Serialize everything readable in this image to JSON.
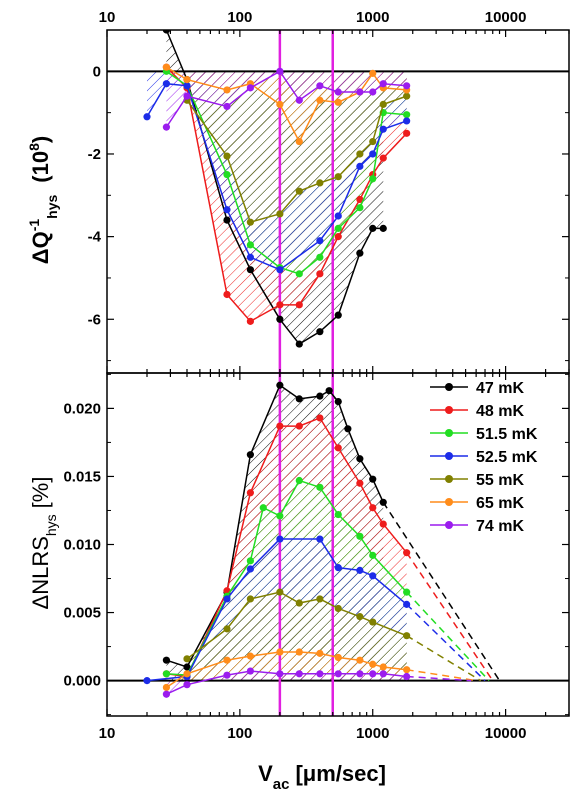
{
  "chart_data": [
    {
      "type": "line",
      "panel": "top",
      "ylabel": "ΔQ⁻¹_hys (10⁸)",
      "ylabel_main": "ΔQ",
      "ylabel_sup": "-1",
      "ylabel_sub": "hys",
      "ylabel_unit": "(10",
      "ylabel_unit_sup": "8",
      "ylabel_unit_end": ")",
      "x_scale": "log",
      "xlim": [
        10,
        30000
      ],
      "ylim": [
        -7.3,
        1.0
      ],
      "x_ticks": [
        10,
        100,
        1000,
        10000
      ],
      "x_tick_labels": [
        "10",
        "100",
        "1000",
        "10000"
      ],
      "y_ticks": [
        0,
        -2,
        -4,
        -6
      ],
      "y_tick_labels": [
        "0",
        "-2",
        "-4",
        "-6"
      ],
      "reference_line_y": 0,
      "vertical_markers_x": [
        200,
        500
      ],
      "series": [
        {
          "name": "47 mK",
          "color": "#000000",
          "x": [
            28,
            40,
            80,
            120,
            200,
            280,
            400,
            550,
            800,
            1000,
            1200
          ],
          "y": [
            1.0,
            -0.2,
            -3.6,
            -4.8,
            -6.0,
            -6.6,
            -6.3,
            -5.9,
            -4.4,
            -3.8,
            -3.8
          ]
        },
        {
          "name": "48 mK",
          "color": "#ee1c1c",
          "x": [
            28,
            40,
            80,
            120,
            200,
            280,
            400,
            550,
            800,
            1000,
            1200,
            1800
          ],
          "y": [
            0.1,
            -0.4,
            -5.4,
            -6.05,
            -5.65,
            -5.65,
            -4.9,
            -4.0,
            -3.1,
            -2.5,
            -2.1,
            -1.5
          ]
        },
        {
          "name": "51.5 mK",
          "color": "#22dd22",
          "x": [
            28,
            40,
            80,
            120,
            200,
            280,
            400,
            550,
            800,
            1000,
            1200,
            1800
          ],
          "y": [
            0.0,
            -0.35,
            -2.5,
            -4.2,
            -4.75,
            -4.9,
            -4.5,
            -3.8,
            -3.3,
            -2.6,
            -1.0,
            -1.05
          ]
        },
        {
          "name": "52.5 mK",
          "color": "#1c2ce8",
          "x": [
            20,
            28,
            40,
            80,
            120,
            200,
            400,
            550,
            800,
            1000,
            1200,
            1800
          ],
          "y": [
            -1.1,
            -0.3,
            -0.35,
            -3.35,
            -4.5,
            -4.8,
            -4.1,
            -3.5,
            -2.3,
            -2.0,
            -1.4,
            -1.2
          ]
        },
        {
          "name": "55 mK",
          "color": "#808000",
          "x": [
            40,
            80,
            120,
            200,
            280,
            400,
            550,
            800,
            1000,
            1200,
            1800
          ],
          "y": [
            -0.7,
            -2.05,
            -3.65,
            -3.45,
            -2.9,
            -2.7,
            -2.55,
            -2.0,
            -1.7,
            -0.8,
            -0.6
          ]
        },
        {
          "name": "65 mK",
          "color": "#ff8c1a",
          "x": [
            28,
            40,
            80,
            120,
            200,
            280,
            400,
            550,
            800,
            1000,
            1200,
            1800
          ],
          "y": [
            0.1,
            -0.2,
            -0.45,
            -0.3,
            -0.8,
            -1.7,
            -0.7,
            -0.75,
            -0.5,
            -0.05,
            -0.4,
            -0.45
          ]
        },
        {
          "name": "74 mK",
          "color": "#9b1cee",
          "x": [
            28,
            40,
            80,
            120,
            200,
            280,
            400,
            550,
            800,
            1000,
            1200,
            1800
          ],
          "y": [
            -1.35,
            -0.6,
            -0.85,
            -0.4,
            0.0,
            -0.7,
            -0.35,
            -0.5,
            -0.5,
            -0.5,
            -0.3,
            -0.35
          ]
        }
      ]
    },
    {
      "type": "line",
      "panel": "bottom",
      "xlabel": "V_ac [μm/sec]",
      "xlabel_main": "V",
      "xlabel_sub": "ac",
      "xlabel_unit": "[μm/sec]",
      "ylabel": "ΔNLRS_hys [%]",
      "ylabel_main": "ΔNLRS",
      "ylabel_sub": "hys",
      "ylabel_unit": "[%]",
      "x_scale": "log",
      "xlim": [
        10,
        30000
      ],
      "ylim": [
        -0.0026,
        0.0226
      ],
      "x_ticks": [
        10,
        100,
        1000,
        10000
      ],
      "x_tick_labels": [
        "10",
        "100",
        "1000",
        "10000"
      ],
      "y_ticks": [
        0.0,
        0.005,
        0.01,
        0.015,
        0.02
      ],
      "y_tick_labels": [
        "0.000",
        "0.005",
        "0.010",
        "0.015",
        "0.020"
      ],
      "reference_line_y": 0,
      "vertical_markers_x": [
        200,
        500
      ],
      "legend_position": "top-right",
      "series": [
        {
          "name": "47 mK",
          "color": "#000000",
          "x": [
            28,
            40,
            80,
            120,
            200,
            280,
            400,
            470,
            550,
            650,
            800,
            1000,
            1200
          ],
          "y": [
            0.0015,
            0.001,
            0.0065,
            0.0166,
            0.0217,
            0.0207,
            0.0209,
            0.0213,
            0.0205,
            0.0185,
            0.0163,
            0.0148,
            0.0131
          ],
          "extrap": [
            [
              1200,
              0.0131
            ],
            [
              9000,
              0.0
            ]
          ]
        },
        {
          "name": "48 mK",
          "color": "#ee1c1c",
          "x": [
            28,
            40,
            80,
            120,
            200,
            280,
            400,
            550,
            800,
            1000,
            1200,
            1800
          ],
          "y": [
            0.0005,
            0.0003,
            0.0066,
            0.0138,
            0.0187,
            0.0187,
            0.0193,
            0.0171,
            0.0145,
            0.0127,
            0.0115,
            0.0094
          ],
          "extrap": [
            [
              1800,
              0.0094
            ],
            [
              8000,
              0.0
            ]
          ]
        },
        {
          "name": "51.5 mK",
          "color": "#22dd22",
          "x": [
            28,
            40,
            80,
            120,
            150,
            200,
            280,
            400,
            550,
            800,
            1000,
            1800
          ],
          "y": [
            0.0005,
            0.0004,
            0.0062,
            0.0088,
            0.0127,
            0.0121,
            0.0147,
            0.0142,
            0.0122,
            0.0106,
            0.0092,
            0.0065
          ],
          "extrap": [
            [
              1800,
              0.0065
            ],
            [
              7500,
              0.0
            ]
          ]
        },
        {
          "name": "52.5 mK",
          "color": "#1c2ce8",
          "x": [
            20,
            40,
            80,
            120,
            200,
            400,
            550,
            800,
            1000,
            1800
          ],
          "y": [
            0.0,
            0.0003,
            0.006,
            0.0082,
            0.0104,
            0.0104,
            0.0083,
            0.0081,
            0.0077,
            0.0056
          ],
          "extrap": [
            [
              1800,
              0.0056
            ],
            [
              7000,
              0.0
            ]
          ]
        },
        {
          "name": "55 mK",
          "color": "#808000",
          "x": [
            40,
            80,
            120,
            200,
            280,
            400,
            550,
            800,
            1000,
            1800
          ],
          "y": [
            0.0016,
            0.0038,
            0.006,
            0.0065,
            0.0057,
            0.006,
            0.0053,
            0.0047,
            0.0043,
            0.0033
          ],
          "extrap": [
            [
              1800,
              0.0033
            ],
            [
              6500,
              0.0
            ]
          ]
        },
        {
          "name": "65 mK",
          "color": "#ff8c1a",
          "x": [
            28,
            40,
            80,
            120,
            200,
            280,
            400,
            550,
            800,
            1000,
            1200,
            1800
          ],
          "y": [
            -0.0005,
            0.0005,
            0.0015,
            0.0018,
            0.0021,
            0.0021,
            0.002,
            0.0017,
            0.0015,
            0.0012,
            0.001,
            0.0008
          ],
          "extrap": [
            [
              1800,
              0.0008
            ],
            [
              6000,
              0.0
            ]
          ]
        },
        {
          "name": "74 mK",
          "color": "#9b1cee",
          "x": [
            28,
            40,
            80,
            120,
            200,
            280,
            400,
            550,
            800,
            1000,
            1200,
            1800
          ],
          "y": [
            -0.001,
            -0.0003,
            0.0004,
            0.0007,
            0.0005,
            0.0005,
            0.0005,
            0.0005,
            0.0005,
            0.0005,
            0.0005,
            0.0003
          ],
          "extrap": [
            [
              1800,
              0.0003
            ],
            [
              5500,
              0.0
            ]
          ]
        }
      ]
    }
  ],
  "colors": {
    "marker_lines": "#e020e0",
    "frame": "#000000"
  }
}
